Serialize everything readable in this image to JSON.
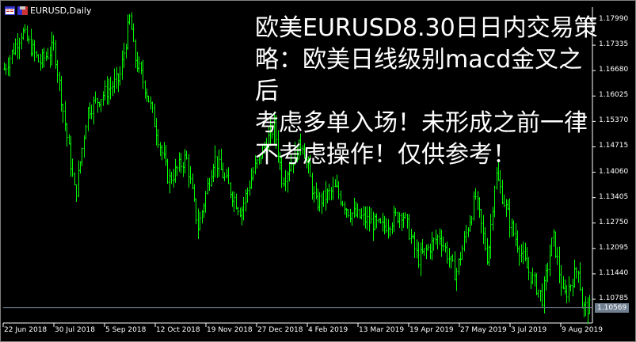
{
  "window": {
    "title": "EURUSD,Daily",
    "symbol": "EURUSD",
    "timeframe": "Daily"
  },
  "colors": {
    "background": "#000000",
    "bars": "#00ff00",
    "axis": "#ffffff",
    "current_price_line": "#708090",
    "overlay_text": "#ffffff"
  },
  "overlay_text": [
    "欧美EURUSD8.30日日内交易策",
    "略：欧美日线级别macd金叉之后",
    "考虑多单入场！未形成之前一律",
    "不考虑操作！仅供参考！"
  ],
  "chart_data": {
    "type": "ohlc",
    "ylim": [
      1.1047,
      1.182
    ],
    "y_ticks": [
      "1.17990",
      "1.17335",
      "1.16680",
      "1.16025",
      "1.15370",
      "1.14715",
      "1.14060",
      "1.13405",
      "1.12750",
      "1.12095",
      "1.11440",
      "1.10785"
    ],
    "current_price": "1.10569",
    "x_ticks": [
      "22 Jun 2018",
      "30 Jul 2018",
      "5 Sep 2018",
      "12 Oct 2018",
      "19 Nov 2018",
      "27 Dec 2018",
      "4 Feb 2019",
      "13 Mar 2019",
      "19 Apr 2019",
      "27 May 2019",
      "3 Jul 2019",
      "9 Aug 2019"
    ],
    "approx_close_path": [
      [
        "2018-06-22",
        1.1668
      ],
      [
        "2018-07-06",
        1.1769
      ],
      [
        "2018-07-19",
        1.1688
      ],
      [
        "2018-07-30",
        1.1728
      ],
      [
        "2018-08-15",
        1.1344
      ],
      [
        "2018-08-24",
        1.1566
      ],
      [
        "2018-09-05",
        1.1607
      ],
      [
        "2018-09-17",
        1.1647
      ],
      [
        "2018-09-25",
        1.1809
      ],
      [
        "2018-09-28",
        1.1708
      ],
      [
        "2018-10-08",
        1.1607
      ],
      [
        "2018-10-24",
        1.1385
      ],
      [
        "2018-11-06",
        1.1445
      ],
      [
        "2018-11-15",
        1.1263
      ],
      [
        "2018-11-27",
        1.1445
      ],
      [
        "2018-12-17",
        1.1304
      ],
      [
        "2018-12-26",
        1.1405
      ],
      [
        "2019-01-11",
        1.1526
      ],
      [
        "2019-01-17",
        1.1385
      ],
      [
        "2019-02-01",
        1.1486
      ],
      [
        "2019-02-11",
        1.1324
      ],
      [
        "2019-02-26",
        1.1364
      ],
      [
        "2019-03-08",
        1.1304
      ],
      [
        "2019-04-02",
        1.1263
      ],
      [
        "2019-04-17",
        1.1304
      ],
      [
        "2019-04-29",
        1.1182
      ],
      [
        "2019-05-15",
        1.1243
      ],
      [
        "2019-05-27",
        1.1142
      ],
      [
        "2019-06-11",
        1.1344
      ],
      [
        "2019-06-20",
        1.1182
      ],
      [
        "2019-06-26",
        1.1405
      ],
      [
        "2019-07-08",
        1.1263
      ],
      [
        "2019-07-19",
        1.1162
      ],
      [
        "2019-07-31",
        1.1081
      ],
      [
        "2019-08-08",
        1.1243
      ],
      [
        "2019-08-16",
        1.1081
      ],
      [
        "2019-08-27",
        1.1162
      ],
      [
        "2019-08-30",
        1.1057
      ]
    ]
  }
}
